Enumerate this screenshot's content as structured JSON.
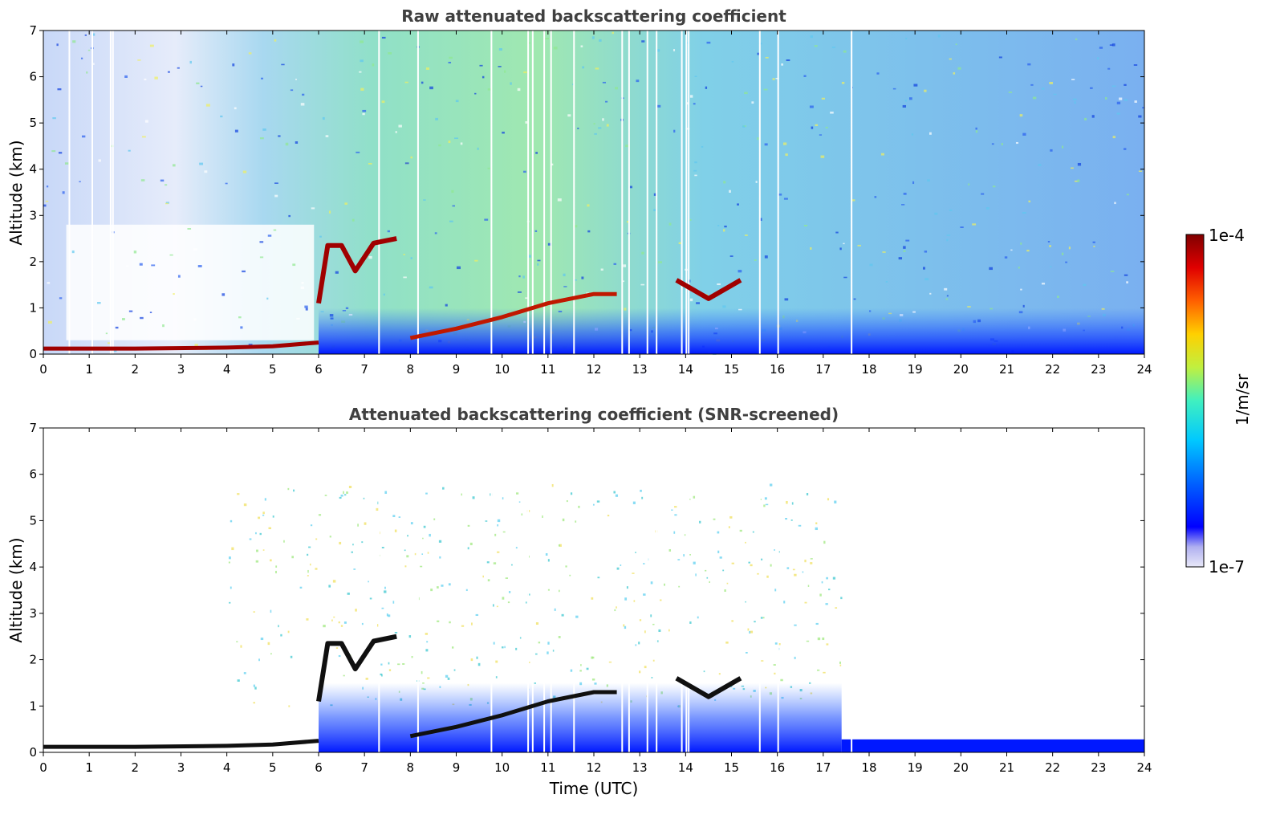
{
  "chart_data": [
    {
      "type": "heatmap",
      "title": "Raw attenuated backscattering coefficient",
      "xlabel": "",
      "ylabel": "Altitude (km)",
      "xlim": [
        0,
        24
      ],
      "ylim": [
        0,
        7
      ],
      "xticks": [
        "0",
        "1",
        "2",
        "3",
        "4",
        "5",
        "6",
        "7",
        "8",
        "9",
        "10",
        "11",
        "12",
        "13",
        "14",
        "15",
        "16",
        "17",
        "18",
        "19",
        "20",
        "21",
        "22",
        "23",
        "24"
      ],
      "yticks": [
        "0",
        "1",
        "2",
        "3",
        "4",
        "5",
        "6",
        "7"
      ],
      "features": {
        "surface_layer": [
          [
            0,
            0.12
          ],
          [
            2,
            0.12
          ],
          [
            4,
            0.14
          ],
          [
            5,
            0.17
          ],
          [
            6,
            0.25
          ]
        ],
        "boundary_layer_top": [
          [
            6,
            1.1
          ],
          [
            6.2,
            2.35
          ],
          [
            6.5,
            2.35
          ],
          [
            6.8,
            1.8
          ],
          [
            7.2,
            2.4
          ],
          [
            7.7,
            2.5
          ],
          [
            8,
            0.35
          ],
          [
            9,
            0.55
          ],
          [
            10,
            0.8
          ],
          [
            11,
            1.1
          ],
          [
            12,
            1.3
          ],
          [
            12.5,
            1.3
          ]
        ],
        "elevated_layer": [
          [
            13.8,
            1.6
          ],
          [
            14.5,
            1.2
          ],
          [
            15.2,
            1.6
          ]
        ]
      }
    },
    {
      "type": "heatmap",
      "title": "Attenuated backscattering coefficient (SNR-screened)",
      "xlabel": "Time (UTC)",
      "ylabel": "Altitude (km)",
      "xlim": [
        0,
        24
      ],
      "ylim": [
        0,
        7
      ],
      "xticks": [
        "0",
        "1",
        "2",
        "3",
        "4",
        "5",
        "6",
        "7",
        "8",
        "9",
        "10",
        "11",
        "12",
        "13",
        "14",
        "15",
        "16",
        "17",
        "18",
        "19",
        "20",
        "21",
        "22",
        "23",
        "24"
      ],
      "yticks": [
        "0",
        "1",
        "2",
        "3",
        "4",
        "5",
        "6",
        "7"
      ],
      "features": {
        "surface_layer": [
          [
            0,
            0.12
          ],
          [
            2,
            0.12
          ],
          [
            4,
            0.14
          ],
          [
            5,
            0.17
          ],
          [
            6,
            0.25
          ]
        ],
        "boundary_layer_top": [
          [
            6,
            1.1
          ],
          [
            6.2,
            2.35
          ],
          [
            6.5,
            2.35
          ],
          [
            6.8,
            1.8
          ],
          [
            7.2,
            2.4
          ],
          [
            7.7,
            2.5
          ],
          [
            8,
            0.35
          ],
          [
            9,
            0.55
          ],
          [
            10,
            0.8
          ],
          [
            11,
            1.1
          ],
          [
            12,
            1.3
          ],
          [
            12.5,
            1.3
          ]
        ],
        "elevated_layer": [
          [
            13.8,
            1.6
          ],
          [
            14.5,
            1.2
          ],
          [
            15.2,
            1.6
          ]
        ],
        "screened_floor_after_17_4": 0.28
      }
    }
  ],
  "colorbar": {
    "label": "1/m/sr",
    "max_label": "1e-4",
    "min_label": "1e-7",
    "scale": "log",
    "colormap": [
      "#e8e8f8",
      "#b0b0f0",
      "#0000ff",
      "#0080ff",
      "#00d0ff",
      "#40f0c0",
      "#c0f040",
      "#ffd000",
      "#ff6000",
      "#e00000",
      "#800000"
    ]
  }
}
